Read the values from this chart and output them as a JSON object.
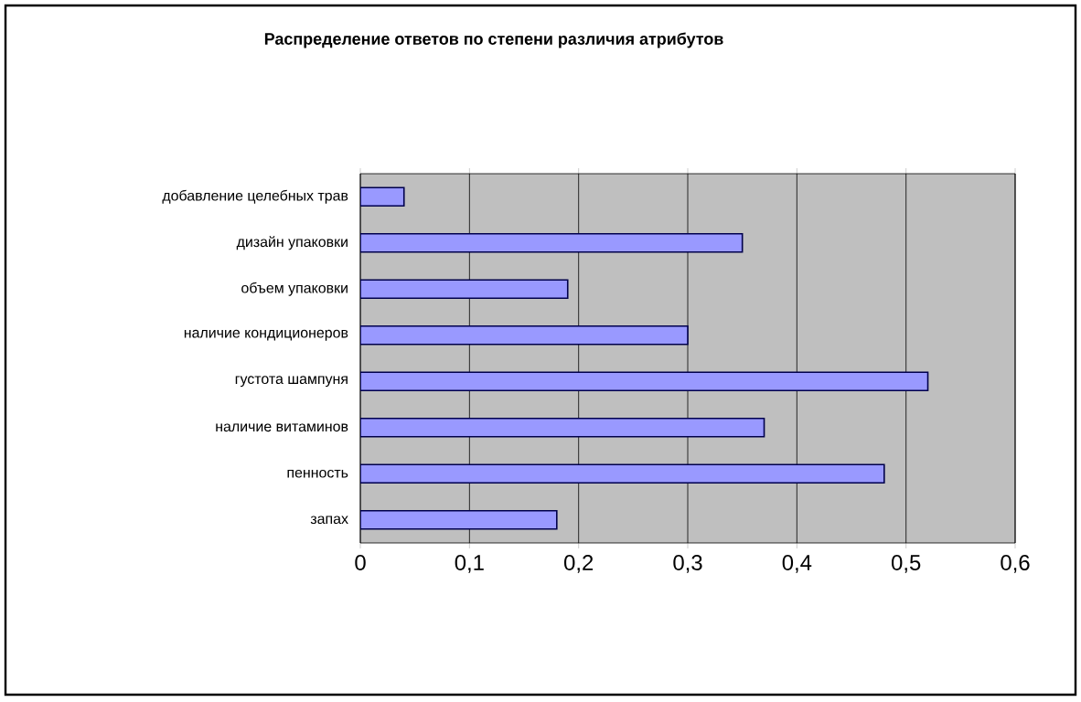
{
  "chart_data": {
    "type": "bar",
    "orientation": "horizontal",
    "title": "Распределение ответов по степени различия атрибутов",
    "categories": [
      "добавление целебных трав",
      "дизайн упаковки",
      "объем упаковки",
      "наличие кондиционеров",
      "густота шампуня",
      "наличие витаминов",
      "пенность",
      "запах"
    ],
    "values": [
      0.04,
      0.35,
      0.19,
      0.3,
      0.52,
      0.37,
      0.48,
      0.18
    ],
    "color": "#9999ff",
    "xlim": [
      0,
      0.6
    ],
    "xticks": [
      0,
      {
        "value": 0.1,
        "label": "0,1"
      },
      {
        "value": 0.2,
        "label": "0,2"
      },
      {
        "value": 0.3,
        "label": "0,3"
      },
      {
        "value": 0.4,
        "label": "0,4"
      },
      {
        "value": 0.5,
        "label": "0,5"
      },
      {
        "value": 0.6,
        "label": "0,6"
      }
    ],
    "grid": "x"
  }
}
